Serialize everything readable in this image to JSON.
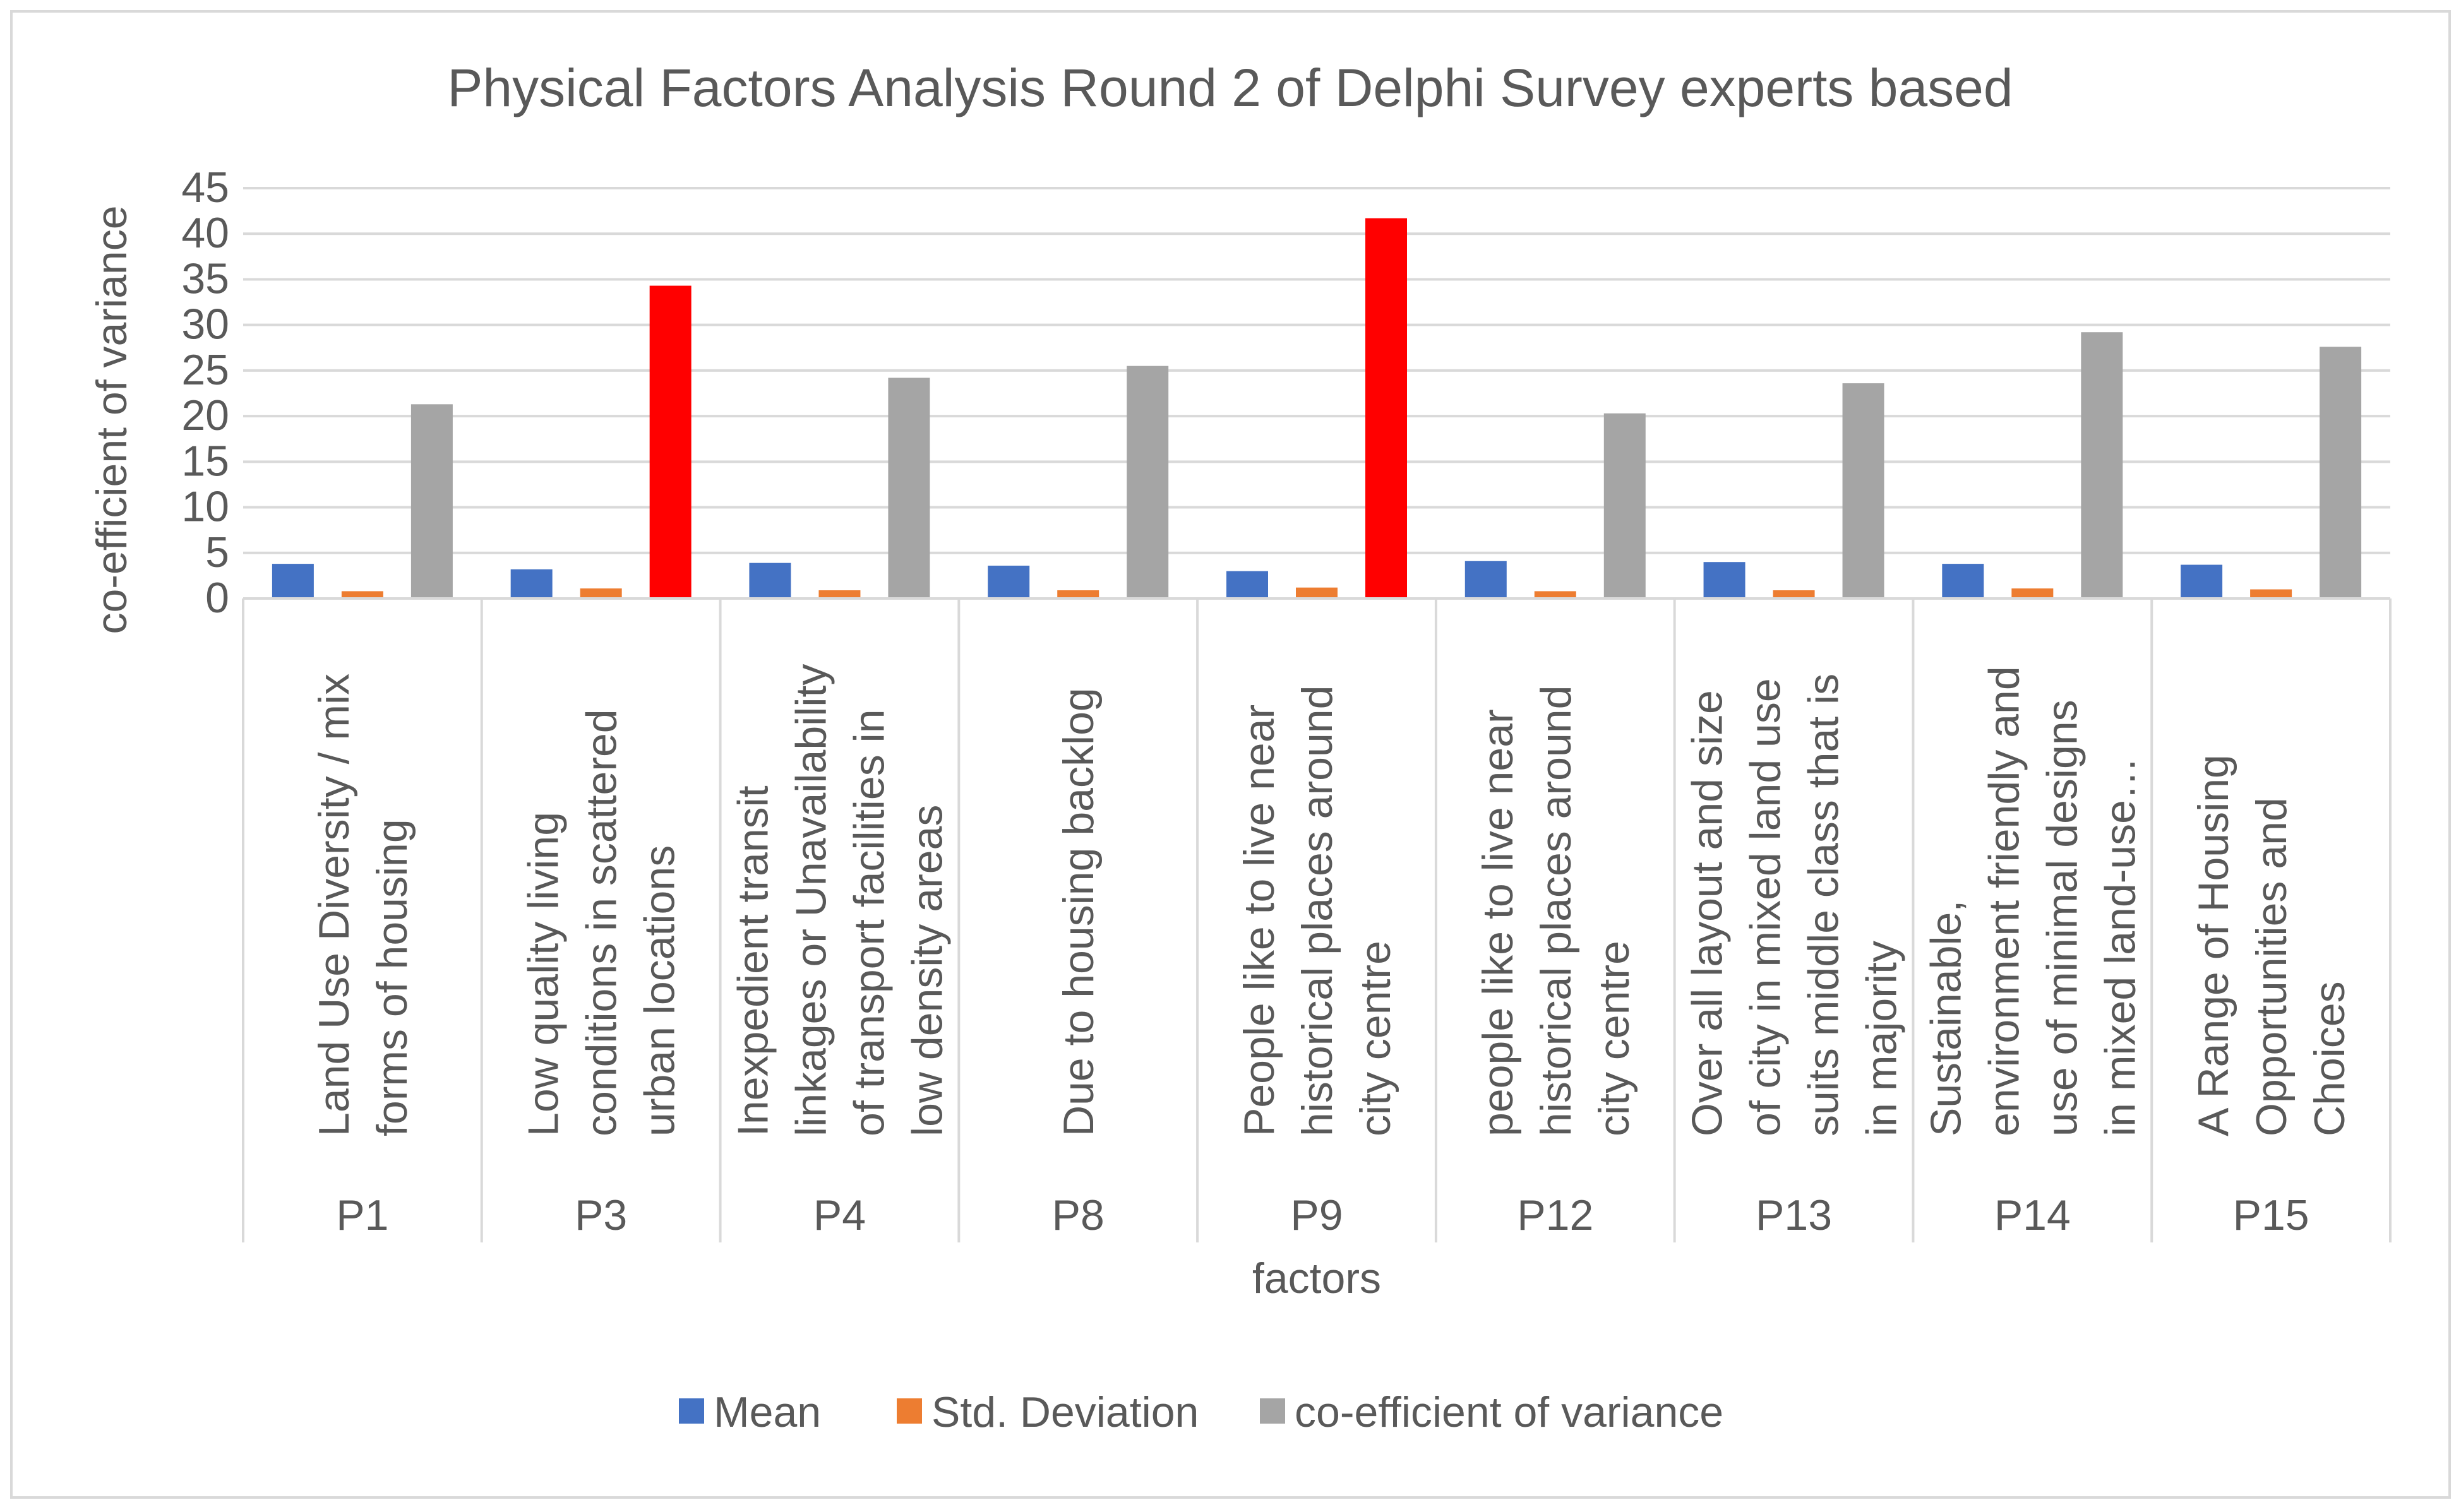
{
  "chart_data": {
    "type": "bar",
    "title": "Physical Factors Analysis Round 2 of Delphi Survey experts based",
    "xlabel": "factors",
    "ylabel": "co-efficient of variance",
    "ylim": [
      0,
      45
    ],
    "y_ticks": [
      "0",
      "5",
      "10",
      "15",
      "20",
      "25",
      "30",
      "35",
      "40",
      "45"
    ],
    "grid": true,
    "legend_position": "bottom",
    "categories": [
      {
        "code": "P1",
        "description": [
          "Land Use Diversity / mix",
          "forms of housing"
        ]
      },
      {
        "code": "P3",
        "description": [
          "Low quality living",
          "conditions in scattered",
          "urban locations"
        ]
      },
      {
        "code": "P4",
        "description": [
          "Inexpedient transit",
          "linkages or Unavailability",
          "of transport facilities in",
          "low density areas"
        ]
      },
      {
        "code": "P8",
        "description": [
          "Due to housing backlog"
        ]
      },
      {
        "code": "P9",
        "description": [
          "People like to live near",
          "historical places around",
          "city centre"
        ]
      },
      {
        "code": "P12",
        "description": [
          "people like to live near",
          "historical places around",
          "city centre"
        ]
      },
      {
        "code": "P13",
        "description": [
          "Over all layout and size",
          "of city in mixed land use",
          "suits middle class that is",
          "in majority"
        ]
      },
      {
        "code": "P14",
        "description": [
          "Sustainable,",
          "environment friendly and",
          "use of minimal designs",
          "in mixed land-use…"
        ]
      },
      {
        "code": "P15",
        "description": [
          "A Range of Housing",
          "Opportunities and",
          "Choices"
        ]
      }
    ],
    "series": [
      {
        "name": "Mean",
        "color": "#4472C4",
        "values": [
          3.8,
          3.2,
          3.9,
          3.6,
          3.0,
          4.1,
          4.0,
          3.8,
          3.7
        ]
      },
      {
        "name": "Std. Deviation",
        "color": "#ED7D31",
        "values": [
          0.8,
          1.1,
          0.9,
          0.9,
          1.2,
          0.8,
          0.9,
          1.1,
          1.0
        ]
      },
      {
        "name": "co-efficient of variance",
        "color": "#A5A5A5",
        "values": [
          21.3,
          34.3,
          24.2,
          25.5,
          41.7,
          20.3,
          23.6,
          29.2,
          27.6
        ],
        "highlight_color": "#FF0000",
        "highlighted_categories": [
          "P3",
          "P9"
        ]
      }
    ]
  }
}
